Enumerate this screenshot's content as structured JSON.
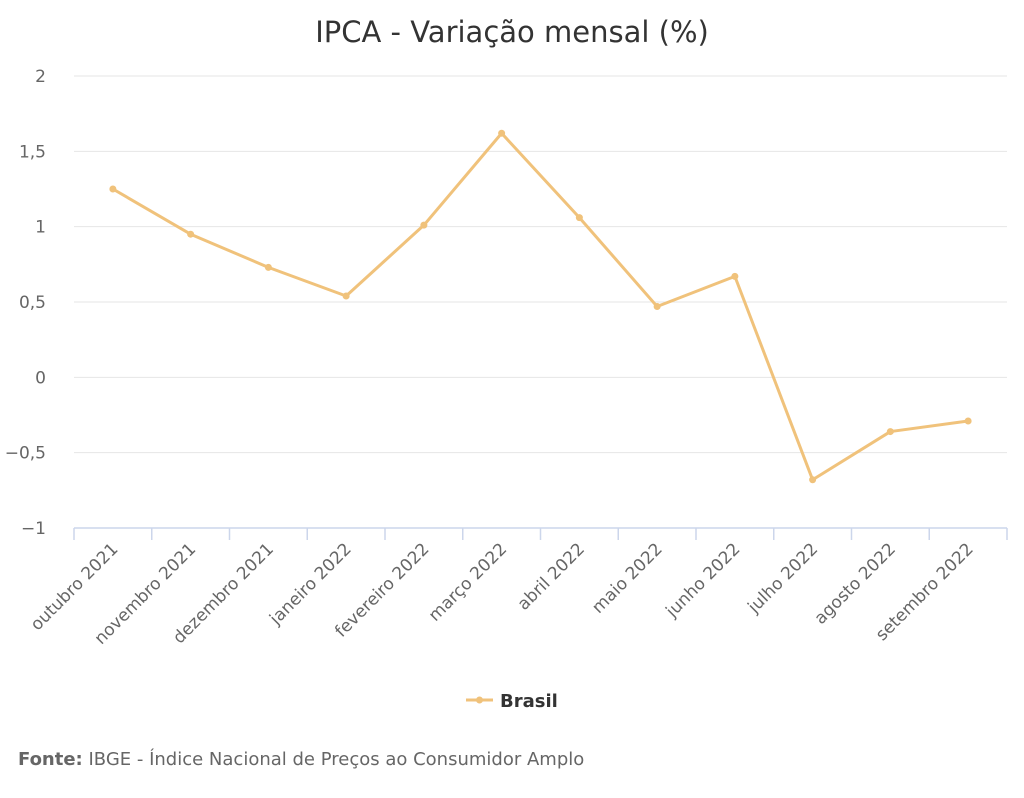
{
  "chart_data": {
    "type": "line",
    "title": "IPCA - Variação mensal (%)",
    "categories": [
      "outubro 2021",
      "novembro 2021",
      "dezembro 2021",
      "janeiro 2022",
      "fevereiro 2022",
      "março 2022",
      "abril 2022",
      "maio 2022",
      "junho 2022",
      "julho 2022",
      "agosto 2022",
      "setembro 2022"
    ],
    "series": [
      {
        "name": "Brasil",
        "color": "#F0C27B",
        "values": [
          1.25,
          0.95,
          0.73,
          0.54,
          1.01,
          1.62,
          1.06,
          0.47,
          0.67,
          -0.68,
          -0.36,
          -0.29
        ]
      }
    ],
    "ylim": [
      -1,
      2
    ],
    "yticks": [
      -1,
      -0.5,
      0,
      0.5,
      1,
      1.5,
      2
    ],
    "ytick_labels": [
      "−1",
      "−0,5",
      "0",
      "0,5",
      "1",
      "1,5",
      "2"
    ],
    "xlabel": "",
    "ylabel": "",
    "grid": true,
    "legend_position": "bottom-center"
  },
  "source": {
    "label": "Fonte:",
    "text": " IBGE - Índice Nacional de Preços ao Consumidor Amplo"
  },
  "colors": {
    "line": "#F0C27B",
    "grid": "#e6e6e6",
    "axis": "#ccd6eb",
    "text": "#666666",
    "title": "#333333"
  }
}
